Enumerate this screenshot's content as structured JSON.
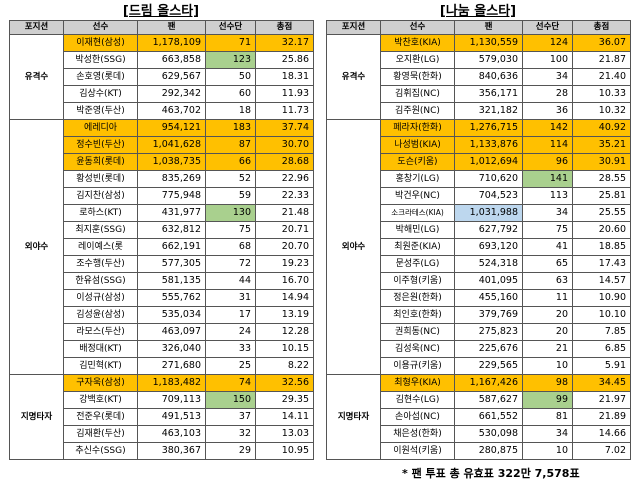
{
  "headers": [
    "포지션",
    "선수",
    "팬",
    "선수단",
    "총점"
  ],
  "panels": [
    {
      "title": "[드림 올스타]",
      "groups": [
        {
          "position": "유격수",
          "rows": [
            {
              "name": "이재현(삼성)",
              "fan": "1,178,109",
              "team": "71",
              "total": "32.17",
              "hl": true
            },
            {
              "name": "박성한(SSG)",
              "fan": "663,858",
              "team": "123",
              "total": "25.86",
              "green": "team"
            },
            {
              "name": "손호영(롯데)",
              "fan": "629,567",
              "team": "50",
              "total": "18.31"
            },
            {
              "name": "김상수(KT)",
              "fan": "292,342",
              "team": "60",
              "total": "11.93"
            },
            {
              "name": "박준영(두산)",
              "fan": "463,702",
              "team": "18",
              "total": "11.73"
            }
          ]
        },
        {
          "position": "외야수",
          "rows": [
            {
              "name": "에레디아",
              "fan": "954,121",
              "team": "183",
              "total": "37.74",
              "hl": true
            },
            {
              "name": "정수빈(두산)",
              "fan": "1,041,628",
              "team": "87",
              "total": "30.70",
              "hl": true
            },
            {
              "name": "윤동희(롯데)",
              "fan": "1,038,735",
              "team": "66",
              "total": "28.68",
              "hl": true
            },
            {
              "name": "황성빈(롯데)",
              "fan": "835,269",
              "team": "52",
              "total": "22.96"
            },
            {
              "name": "김지찬(삼성)",
              "fan": "775,948",
              "team": "59",
              "total": "22.33"
            },
            {
              "name": "로하스(KT)",
              "fan": "431,977",
              "team": "130",
              "total": "21.48",
              "green": "team"
            },
            {
              "name": "최지훈(SSG)",
              "fan": "632,812",
              "team": "75",
              "total": "20.71"
            },
            {
              "name": "레이예스(롯",
              "fan": "662,191",
              "team": "68",
              "total": "20.70"
            },
            {
              "name": "조수행(두산)",
              "fan": "577,305",
              "team": "72",
              "total": "19.23"
            },
            {
              "name": "한유섬(SSG)",
              "fan": "581,135",
              "team": "44",
              "total": "16.70"
            },
            {
              "name": "이성규(삼성)",
              "fan": "555,762",
              "team": "31",
              "total": "14.94"
            },
            {
              "name": "김성윤(삼성)",
              "fan": "535,034",
              "team": "17",
              "total": "13.19"
            },
            {
              "name": "라모스(두산)",
              "fan": "463,097",
              "team": "24",
              "total": "12.28"
            },
            {
              "name": "배정대(KT)",
              "fan": "326,040",
              "team": "33",
              "total": "10.15"
            },
            {
              "name": "김민혁(KT)",
              "fan": "271,680",
              "team": "25",
              "total": "8.22"
            }
          ]
        },
        {
          "position": "지명타자",
          "rows": [
            {
              "name": "구자욱(삼성)",
              "fan": "1,183,482",
              "team": "74",
              "total": "32.56",
              "hl": true
            },
            {
              "name": "강백호(KT)",
              "fan": "709,113",
              "team": "150",
              "total": "29.35",
              "green": "team"
            },
            {
              "name": "전준우(롯데)",
              "fan": "491,513",
              "team": "37",
              "total": "14.11"
            },
            {
              "name": "김재환(두산)",
              "fan": "463,103",
              "team": "32",
              "total": "13.03"
            },
            {
              "name": "추신수(SSG)",
              "fan": "380,367",
              "team": "29",
              "total": "10.95"
            }
          ]
        }
      ]
    },
    {
      "title": "[나눔 올스타]",
      "groups": [
        {
          "position": "유격수",
          "rows": [
            {
              "name": "박찬호(KIA)",
              "fan": "1,130,559",
              "team": "124",
              "total": "36.07",
              "hl": true
            },
            {
              "name": "오지환(LG)",
              "fan": "579,030",
              "team": "100",
              "total": "21.87"
            },
            {
              "name": "황영묵(한화)",
              "fan": "840,636",
              "team": "34",
              "total": "21.40"
            },
            {
              "name": "김휘집(NC)",
              "fan": "356,171",
              "team": "28",
              "total": "10.33"
            },
            {
              "name": "김주원(NC)",
              "fan": "321,182",
              "team": "36",
              "total": "10.32"
            }
          ]
        },
        {
          "position": "외야수",
          "rows": [
            {
              "name": "페라자(한화)",
              "fan": "1,276,715",
              "team": "142",
              "total": "40.92",
              "hl": true
            },
            {
              "name": "나성범(KIA)",
              "fan": "1,133,876",
              "team": "114",
              "total": "35.21",
              "hl": true
            },
            {
              "name": "도슨(키움)",
              "fan": "1,012,694",
              "team": "96",
              "total": "30.91",
              "hl": true
            },
            {
              "name": "홍창기(LG)",
              "fan": "710,620",
              "team": "141",
              "total": "28.55",
              "green": "team"
            },
            {
              "name": "박건우(NC)",
              "fan": "704,523",
              "team": "113",
              "total": "25.81"
            },
            {
              "name": "소크라테스(KIA)",
              "fan": "1,031,988",
              "team": "34",
              "total": "25.55",
              "blue": "fan",
              "small": true
            },
            {
              "name": "박해민(LG)",
              "fan": "627,792",
              "team": "75",
              "total": "20.60"
            },
            {
              "name": "최원준(KIA)",
              "fan": "693,120",
              "team": "41",
              "total": "18.85"
            },
            {
              "name": "문성주(LG)",
              "fan": "524,318",
              "team": "65",
              "total": "17.43"
            },
            {
              "name": "이주형(키움)",
              "fan": "401,095",
              "team": "63",
              "total": "14.57"
            },
            {
              "name": "정은원(한화)",
              "fan": "455,160",
              "team": "11",
              "total": "10.90"
            },
            {
              "name": "최인호(한화)",
              "fan": "379,769",
              "team": "20",
              "total": "10.10"
            },
            {
              "name": "권희동(NC)",
              "fan": "275,823",
              "team": "20",
              "total": "7.85"
            },
            {
              "name": "김성욱(NC)",
              "fan": "225,676",
              "team": "21",
              "total": "6.85"
            },
            {
              "name": "이용규(키움)",
              "fan": "229,565",
              "team": "10",
              "total": "5.91"
            }
          ]
        },
        {
          "position": "지명타자",
          "rows": [
            {
              "name": "최형우(KIA)",
              "fan": "1,167,426",
              "team": "98",
              "total": "34.45",
              "hl": true
            },
            {
              "name": "김현수(LG)",
              "fan": "587,627",
              "team": "99",
              "total": "21.97",
              "green": "team"
            },
            {
              "name": "손아섭(NC)",
              "fan": "661,552",
              "team": "81",
              "total": "21.89"
            },
            {
              "name": "채은성(한화)",
              "fan": "530,098",
              "team": "34",
              "total": "14.66"
            },
            {
              "name": "이원석(키움)",
              "fan": "280,875",
              "team": "10",
              "total": "7.02"
            }
          ]
        }
      ]
    }
  ],
  "footnote": "* 팬 투표 총 유효표 322만 7,578표",
  "colors": {
    "highlight": "#ffc000",
    "green": "#a9d08e",
    "blue": "#bdd7ee",
    "header": "#cfcfcf"
  }
}
